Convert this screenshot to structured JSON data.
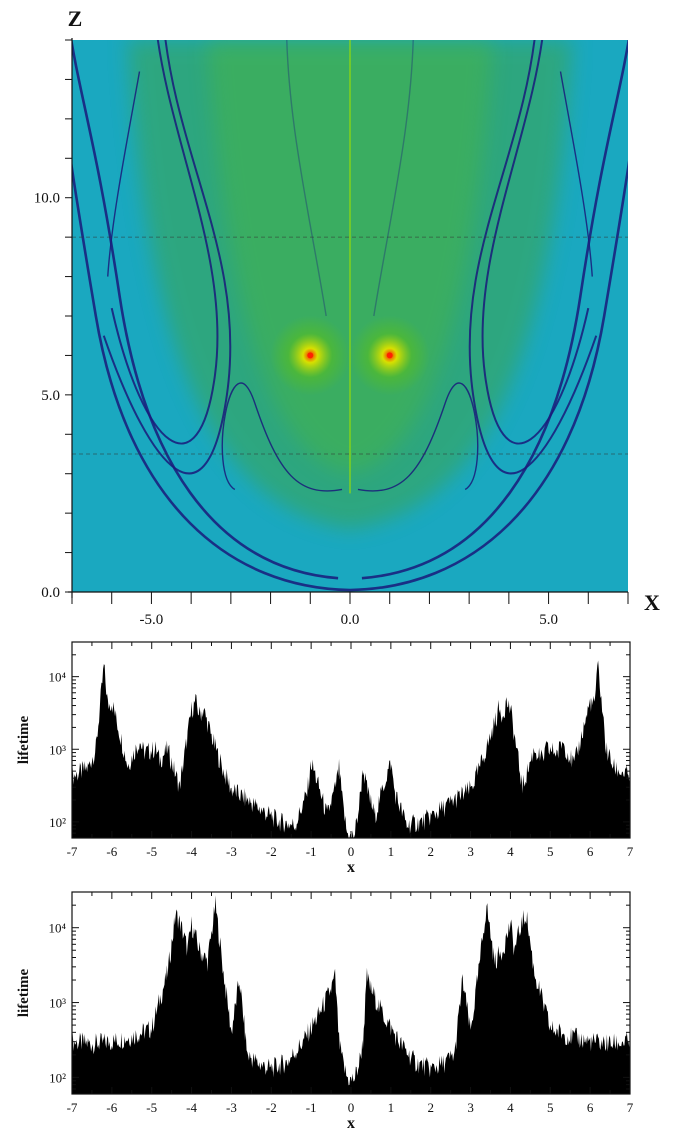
{
  "chart_data": [
    {
      "type": "heatmap",
      "xlabel": "X",
      "ylabel": "Z",
      "xlim": [
        -7,
        7
      ],
      "ylim": [
        0,
        14
      ],
      "x_tick_labels": [
        {
          "value": -5,
          "label": "-5.0"
        },
        {
          "value": 0,
          "label": "0.0"
        },
        {
          "value": 5,
          "label": "5.0"
        }
      ],
      "y_tick_labels": [
        {
          "value": 0,
          "label": "0.0"
        },
        {
          "value": 5,
          "label": "5.0"
        },
        {
          "value": 10,
          "label": "10.0"
        }
      ],
      "minor_x_ticks": [
        -7,
        -6,
        -5,
        -4,
        -3,
        -2,
        -1,
        0,
        1,
        2,
        3,
        4,
        5,
        6,
        7
      ],
      "minor_y_ticks": [
        0,
        1,
        2,
        3,
        4,
        5,
        6,
        7,
        8,
        9,
        10,
        11,
        12,
        13,
        14
      ],
      "hot_spots": [
        {
          "x": -1.0,
          "y": 6.0
        },
        {
          "x": 1.0,
          "y": 6.0
        }
      ],
      "dashed_lines_z": [
        9.0,
        3.5
      ],
      "colormap": [
        "#1aa8c0",
        "#21a5a0",
        "#3ea64c",
        "#52bb2c",
        "#d8e000",
        "#ff2000"
      ],
      "boundary_color": "#1a1a7a"
    },
    {
      "type": "area",
      "xlabel": "x",
      "ylabel": "lifetime",
      "xlim": [
        -7,
        7
      ],
      "yscale": "log",
      "ylim": [
        60,
        30000
      ],
      "x_tick_labels": [
        "-7",
        "-6",
        "-5",
        "-4",
        "-3",
        "-2",
        "-1",
        "0",
        "1",
        "2",
        "3",
        "4",
        "5",
        "6",
        "7"
      ],
      "y_tick_labels": [
        {
          "value": 100,
          "label": "10²"
        },
        {
          "value": 1000,
          "label": "10³"
        },
        {
          "value": 10000,
          "label": "10⁴"
        }
      ],
      "fill_color": "#000000",
      "x": [
        -7.0,
        -6.6,
        -6.4,
        -6.2,
        -6.1,
        -6.0,
        -5.6,
        -5.3,
        -5.2,
        -4.9,
        -4.8,
        -4.6,
        -4.3,
        -4.0,
        -3.9,
        -3.8,
        -3.7,
        -3.5,
        -3.2,
        -3.0,
        -2.6,
        -2.2,
        -1.8,
        -1.4,
        -1.1,
        -1.0,
        -0.9,
        -0.6,
        -0.4,
        -0.3,
        -0.2,
        -0.1,
        0.0,
        0.1,
        0.2,
        0.3,
        0.4,
        0.6,
        0.9,
        1.0,
        1.1,
        1.4,
        1.8,
        2.2,
        2.6,
        3.0,
        3.2,
        3.5,
        3.7,
        3.8,
        3.9,
        4.0,
        4.3,
        4.6,
        4.8,
        4.9,
        5.2,
        5.3,
        5.6,
        6.0,
        6.1,
        6.2,
        6.4,
        6.6,
        7.0
      ],
      "y": [
        420,
        550,
        1000,
        14000,
        4000,
        4500,
        600,
        1300,
        900,
        1000,
        700,
        1000,
        300,
        3500,
        4500,
        3000,
        3500,
        1500,
        500,
        280,
        200,
        140,
        100,
        90,
        250,
        650,
        450,
        120,
        280,
        550,
        160,
        70,
        60,
        70,
        160,
        550,
        280,
        120,
        450,
        650,
        250,
        90,
        100,
        140,
        200,
        280,
        500,
        1500,
        3500,
        3000,
        4500,
        3500,
        300,
        1000,
        700,
        1000,
        900,
        1300,
        600,
        4500,
        4000,
        14000,
        1000,
        550,
        420
      ]
    },
    {
      "type": "area",
      "xlabel": "x",
      "ylabel": "lifetime",
      "xlim": [
        -7,
        7
      ],
      "yscale": "log",
      "ylim": [
        60,
        30000
      ],
      "x_tick_labels": [
        "-7",
        "-6",
        "-5",
        "-4",
        "-3",
        "-2",
        "-1",
        "0",
        "1",
        "2",
        "3",
        "4",
        "5",
        "6",
        "7"
      ],
      "y_tick_labels": [
        {
          "value": 100,
          "label": "10²"
        },
        {
          "value": 1000,
          "label": "10³"
        },
        {
          "value": 10000,
          "label": "10⁴"
        }
      ],
      "fill_color": "#000000",
      "x": [
        -7.0,
        -6.5,
        -6.0,
        -5.5,
        -5.0,
        -4.6,
        -4.4,
        -4.3,
        -4.2,
        -4.1,
        -4.0,
        -3.8,
        -3.6,
        -3.4,
        -3.2,
        -3.0,
        -2.8,
        -2.6,
        -2.3,
        -2.0,
        -1.6,
        -1.2,
        -0.8,
        -0.5,
        -0.4,
        -0.3,
        -0.2,
        -0.1,
        0.0,
        0.1,
        0.2,
        0.3,
        0.4,
        0.5,
        0.8,
        1.2,
        1.6,
        2.0,
        2.3,
        2.6,
        2.8,
        3.0,
        3.2,
        3.4,
        3.6,
        3.8,
        4.0,
        4.1,
        4.2,
        4.3,
        4.4,
        4.6,
        5.0,
        5.5,
        6.0,
        6.5,
        7.0
      ],
      "y": [
        300,
        280,
        300,
        350,
        450,
        2500,
        15000,
        12000,
        8000,
        5000,
        11000,
        5000,
        3500,
        20000,
        2500,
        400,
        2000,
        200,
        150,
        130,
        160,
        300,
        700,
        1500,
        2200,
        300,
        150,
        100,
        90,
        100,
        150,
        300,
        2200,
        1500,
        700,
        300,
        160,
        130,
        150,
        200,
        2000,
        400,
        2500,
        20000,
        3500,
        5000,
        11000,
        5000,
        8000,
        12000,
        15000,
        2500,
        450,
        350,
        300,
        280,
        300
      ]
    }
  ]
}
